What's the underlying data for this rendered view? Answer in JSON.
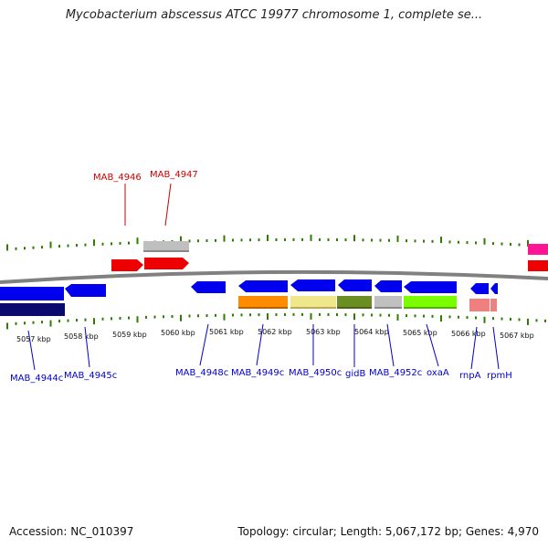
{
  "title": "Mycobacterium abscessus ATCC 19977 chromosome 1, complete se...",
  "footer": {
    "accession": "Accession: NC_010397",
    "summary": "Topology: circular; Length: 5,067,172 bp; Genes: 4,970"
  },
  "colors": {
    "backbone": "#808080",
    "tick": "#2e7d00",
    "label_plus": "#cc0000",
    "label_minus": "#0000cc"
  },
  "ruler_labels": [
    "5057 kbp",
    "5058 kbp",
    "5059 kbp",
    "5060 kbp",
    "5061 kbp",
    "5062 kbp",
    "5063 kbp",
    "5064 kbp",
    "5065 kbp",
    "5066 kbp",
    "5067 kbp"
  ],
  "gene_labels_plus": [
    "MAB_4946",
    "MAB_4947"
  ],
  "gene_labels_minus": [
    "MAB_4944c",
    "MAB_4945c",
    "MAB_4948c",
    "MAB_4949c",
    "MAB_4950c",
    "gidB",
    "MAB_4952c",
    "oxaA",
    "rnpA",
    "rpmH"
  ]
}
